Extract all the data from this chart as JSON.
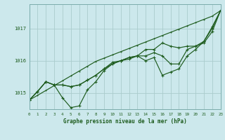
{
  "title": "Graphe pression niveau de la mer (hPa)",
  "bg_color": "#cce8ec",
  "grid_color": "#aacccc",
  "line_color": "#1e5c1e",
  "xlim": [
    0,
    23
  ],
  "ylim": [
    1014.5,
    1017.75
  ],
  "yticks": [
    1015,
    1016,
    1017
  ],
  "xticks": [
    0,
    1,
    2,
    3,
    4,
    5,
    6,
    7,
    8,
    9,
    10,
    11,
    12,
    13,
    14,
    15,
    16,
    17,
    18,
    19,
    20,
    21,
    22,
    23
  ],
  "line_straight": [
    1014.78,
    1014.93,
    1015.08,
    1015.23,
    1015.38,
    1015.53,
    1015.68,
    1015.83,
    1015.98,
    1016.08,
    1016.18,
    1016.28,
    1016.38,
    1016.48,
    1016.58,
    1016.68,
    1016.78,
    1016.88,
    1016.98,
    1017.08,
    1017.18,
    1017.28,
    1017.38,
    1017.55
  ],
  "line_dip": [
    1014.78,
    1015.05,
    1015.35,
    1015.25,
    1014.85,
    1014.55,
    1014.6,
    1015.1,
    1015.35,
    1015.7,
    1015.9,
    1016.0,
    1016.1,
    1016.15,
    1016.0,
    1016.1,
    1015.55,
    1015.65,
    1015.75,
    1016.15,
    1016.35,
    1016.6,
    1017.05,
    1017.55
  ],
  "line_mid1": [
    1014.78,
    1015.05,
    1015.35,
    1015.25,
    1015.25,
    1015.2,
    1015.25,
    1015.4,
    1015.55,
    1015.75,
    1015.95,
    1016.0,
    1016.05,
    1016.15,
    1016.35,
    1016.35,
    1016.55,
    1016.45,
    1016.4,
    1016.45,
    1016.45,
    1016.55,
    1016.9,
    1017.55
  ],
  "line_mid2": [
    1014.78,
    1015.05,
    1015.35,
    1015.25,
    1015.25,
    1015.2,
    1015.25,
    1015.4,
    1015.55,
    1015.75,
    1015.9,
    1016.0,
    1016.1,
    1016.15,
    1016.15,
    1016.25,
    1016.15,
    1015.9,
    1015.9,
    1016.35,
    1016.45,
    1016.6,
    1017.0,
    1017.55
  ]
}
